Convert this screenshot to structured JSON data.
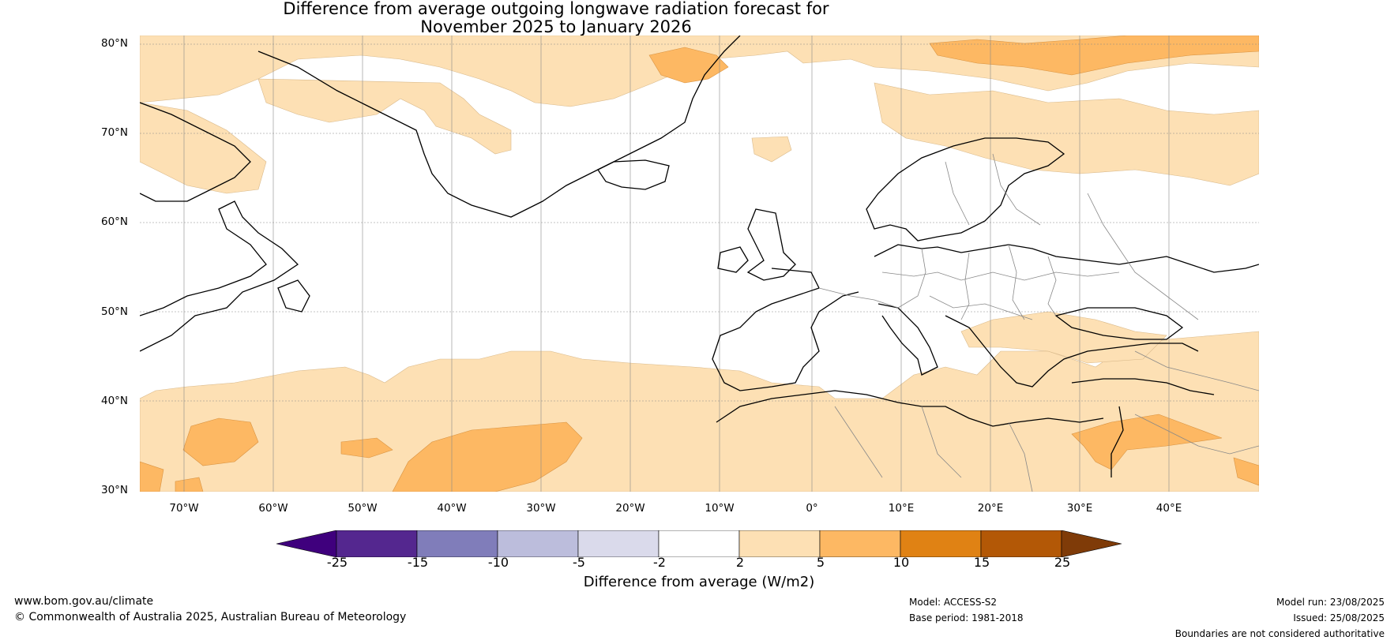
{
  "title_line1": "Difference from average outgoing longwave radiation forecast for",
  "title_line2": "November 2025 to January 2026",
  "latitudes": [
    "80°N",
    "70°N",
    "60°N",
    "50°N",
    "40°N",
    "30°N"
  ],
  "longitudes": [
    "70°W",
    "60°W",
    "50°W",
    "40°W",
    "30°W",
    "20°W",
    "10°W",
    "0°",
    "10°E",
    "20°E",
    "30°E",
    "40°E"
  ],
  "colorbar": {
    "ticks": [
      "-25",
      "-15",
      "-10",
      "-5",
      "-2",
      "2",
      "5",
      "10",
      "15",
      "25"
    ],
    "colors": [
      "#3f007d",
      "#54278f",
      "#807dba",
      "#bcbddc",
      "#dadaeb",
      "#ffffff",
      "#fde0b4",
      "#fdb863",
      "#e08214",
      "#b35806",
      "#7f3b08"
    ],
    "label": "Difference from average (W/m2)"
  },
  "footer": {
    "website": "www.bom.gov.au/climate",
    "copyright": "© Commonwealth of Australia 2025, Australian Bureau of Meteorology",
    "model": "Model: ACCESS-S2",
    "base_period": "Base period: 1981-2018",
    "model_run": "Model run: 23/08/2025",
    "issued": "Issued: 25/08/2025",
    "disclaimer": "Boundaries are not considered authoritative"
  }
}
